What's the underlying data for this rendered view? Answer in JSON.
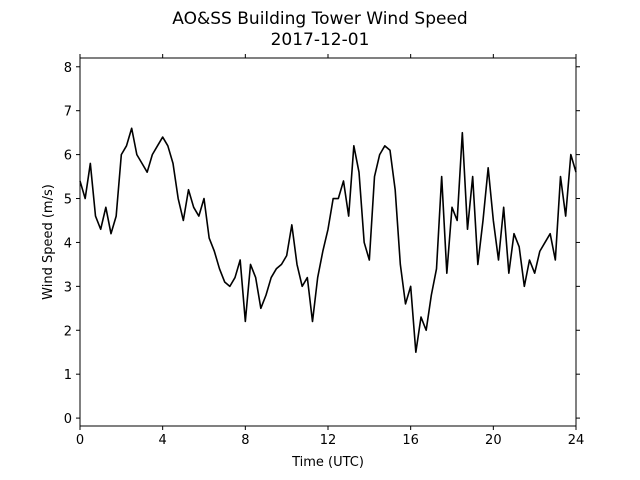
{
  "chart_data": {
    "type": "line",
    "title": "AO&SS Building Tower Wind Speed",
    "subtitle": "2017-12-01",
    "xlabel": "Time (UTC)",
    "ylabel": "Wind Speed (m/s)",
    "xlim": [
      0,
      24
    ],
    "xticks": [
      0,
      4,
      8,
      12,
      16,
      20,
      24
    ],
    "ylim": [
      -0.18,
      8.2
    ],
    "yticks": [
      0,
      1,
      2,
      3,
      4,
      5,
      6,
      7,
      8
    ],
    "x": [
      0,
      0.25,
      0.5,
      0.75,
      1,
      1.25,
      1.5,
      1.75,
      2,
      2.25,
      2.5,
      2.75,
      3,
      3.25,
      3.5,
      3.75,
      4,
      4.25,
      4.5,
      4.75,
      5,
      5.25,
      5.5,
      5.75,
      6,
      6.25,
      6.5,
      6.75,
      7,
      7.25,
      7.5,
      7.75,
      8,
      8.25,
      8.5,
      8.75,
      9,
      9.25,
      9.5,
      9.75,
      10,
      10.25,
      10.5,
      10.75,
      11,
      11.25,
      11.5,
      11.75,
      12,
      12.25,
      12.5,
      12.75,
      13,
      13.25,
      13.5,
      13.75,
      14,
      14.25,
      14.5,
      14.75,
      15,
      15.25,
      15.5,
      15.75,
      16,
      16.25,
      16.5,
      16.75,
      17,
      17.25,
      17.5,
      17.75,
      18,
      18.25,
      18.5,
      18.75,
      19,
      19.25,
      19.5,
      19.75,
      20,
      20.25,
      20.5,
      20.75,
      21,
      21.25,
      21.5,
      21.75,
      22,
      22.25,
      22.5,
      22.75,
      23,
      23.25,
      23.5,
      23.75,
      24
    ],
    "series": [
      {
        "color": "#000000",
        "values": [
          5.4,
          5.0,
          5.8,
          4.6,
          4.3,
          4.8,
          4.2,
          4.6,
          6.0,
          6.2,
          6.6,
          6.0,
          5.8,
          5.6,
          6.0,
          6.2,
          6.4,
          6.2,
          5.8,
          5.0,
          4.5,
          5.2,
          4.8,
          4.6,
          5.0,
          4.1,
          3.8,
          3.4,
          3.1,
          3.0,
          3.2,
          3.6,
          2.2,
          3.5,
          3.2,
          2.5,
          2.8,
          3.2,
          3.4,
          3.5,
          3.7,
          4.4,
          3.5,
          3.0,
          3.2,
          2.2,
          3.2,
          3.8,
          4.3,
          5.0,
          5.0,
          5.4,
          4.6,
          6.2,
          5.6,
          4.0,
          3.6,
          5.5,
          6.0,
          6.2,
          6.1,
          5.2,
          3.5,
          2.6,
          3.0,
          1.5,
          2.3,
          2.0,
          2.8,
          3.4,
          5.5,
          3.3,
          4.8,
          4.5,
          6.5,
          4.3,
          5.5,
          3.5,
          4.5,
          5.7,
          4.5,
          3.6,
          4.8,
          3.3,
          4.2,
          3.9,
          3.0,
          3.6,
          3.3,
          3.8,
          4.0,
          4.2,
          3.6,
          5.5,
          4.6,
          6.0,
          5.6
        ]
      }
    ]
  }
}
